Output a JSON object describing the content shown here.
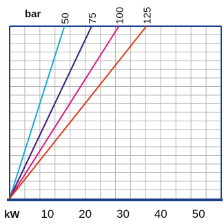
{
  "chart_data": {
    "type": "line",
    "title": "",
    "xlabel": "kW",
    "ylabel": "",
    "legend_title": "bar",
    "xlim": [
      0,
      56
    ],
    "ylim": [
      0,
      1
    ],
    "x_ticks": [
      10,
      20,
      30,
      40,
      50
    ],
    "x_tick_labels": [
      "10",
      "20",
      "30",
      "40",
      "50"
    ],
    "grid": true,
    "series": [
      {
        "name": "50",
        "color": "#1aa7d6",
        "x": [
          0,
          14.5
        ],
        "y": [
          0,
          1
        ]
      },
      {
        "name": "75",
        "color": "#3a1a78",
        "x": [
          0,
          21.7
        ],
        "y": [
          0,
          1
        ]
      },
      {
        "name": "100",
        "color": "#e0157a",
        "x": [
          0,
          28.9
        ],
        "y": [
          0,
          1
        ]
      },
      {
        "name": "125",
        "color": "#e03a1e",
        "x": [
          0,
          36.2
        ],
        "y": [
          0,
          1
        ]
      }
    ],
    "colors": {
      "axis": "#1a3f8a",
      "grid": "#b5b5b5"
    }
  }
}
